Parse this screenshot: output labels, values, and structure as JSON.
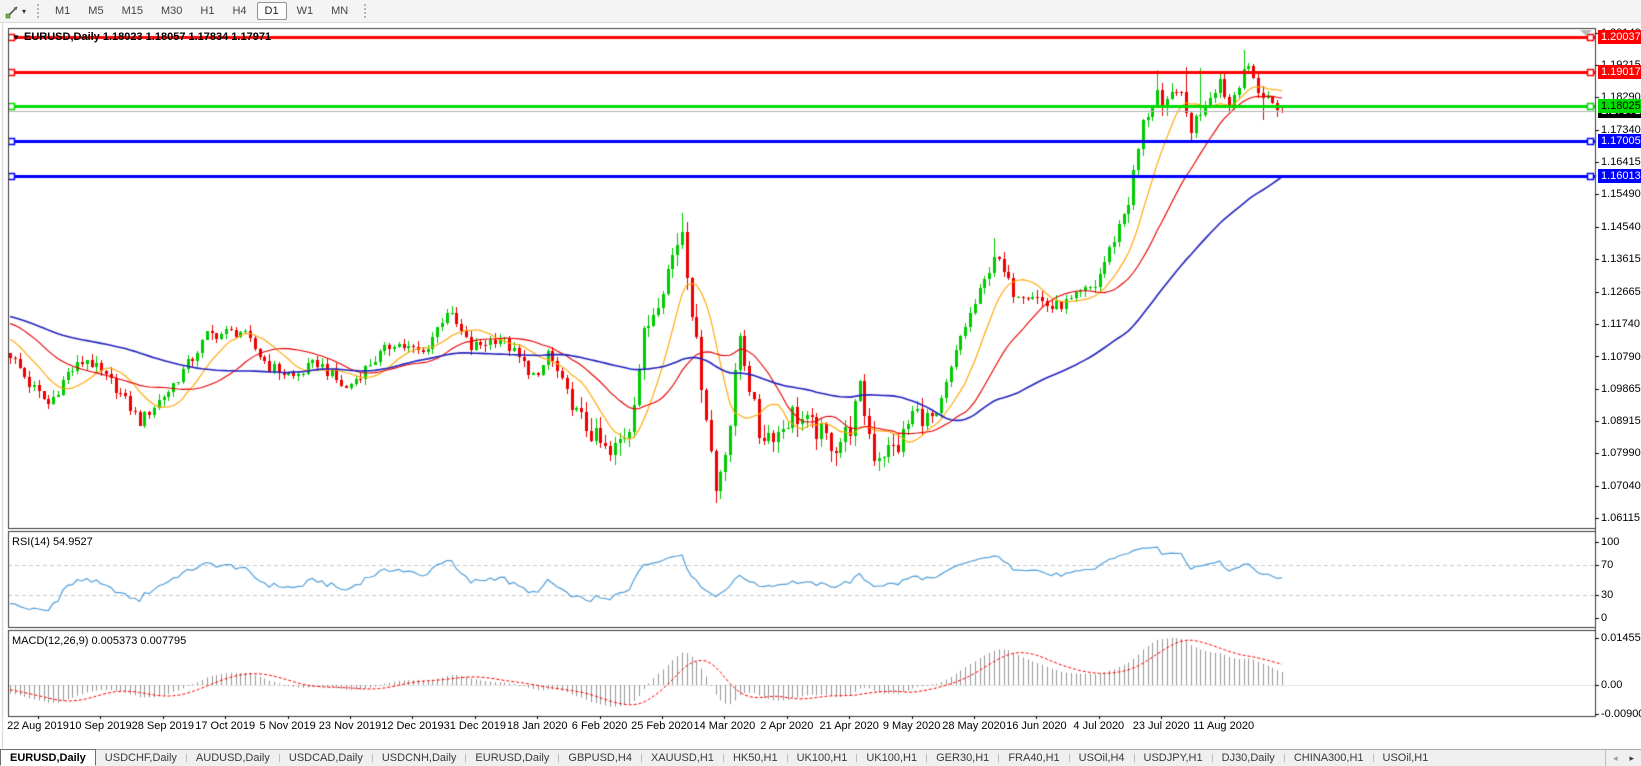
{
  "toolbar": {
    "tool_icon": "trendline-draw-icon",
    "dropdown_glyph": "▾",
    "timeframes": [
      {
        "label": "M1",
        "active": false
      },
      {
        "label": "M5",
        "active": false
      },
      {
        "label": "M15",
        "active": false
      },
      {
        "label": "M30",
        "active": false
      },
      {
        "label": "H1",
        "active": false
      },
      {
        "label": "H4",
        "active": false
      },
      {
        "label": "D1",
        "active": true
      },
      {
        "label": "W1",
        "active": false
      },
      {
        "label": "MN",
        "active": false
      }
    ]
  },
  "main_chart": {
    "title_arrow": "▼",
    "title": "EURUSD,Daily 1.18023 1.18057 1.17834 1.17971",
    "axis_ticks": [
      {
        "label": "1.20140",
        "price": 1.2014
      },
      {
        "label": "1.19215",
        "price": 1.19215
      },
      {
        "label": "1.18290",
        "price": 1.1829
      },
      {
        "label": "1.17340",
        "price": 1.1734
      },
      {
        "label": "1.16415",
        "price": 1.16415
      },
      {
        "label": "1.15490",
        "price": 1.1549
      },
      {
        "label": "1.14540",
        "price": 1.1454
      },
      {
        "label": "1.13615",
        "price": 1.13615
      },
      {
        "label": "1.12665",
        "price": 1.12665
      },
      {
        "label": "1.11740",
        "price": 1.1174
      },
      {
        "label": "1.10790",
        "price": 1.1079
      },
      {
        "label": "1.09865",
        "price": 1.09865
      },
      {
        "label": "1.08915",
        "price": 1.08915
      },
      {
        "label": "1.07990",
        "price": 1.0799
      },
      {
        "label": "1.07040",
        "price": 1.0704
      },
      {
        "label": "1.06115",
        "price": 1.06115
      }
    ],
    "hlines": [
      {
        "price": 1.20037,
        "label": "1.20037",
        "color": "#FF0000",
        "text_color": "#FFFFFF"
      },
      {
        "price": 1.19017,
        "label": "1.19017",
        "color": "#FF0000",
        "text_color": "#FFFFFF"
      },
      {
        "price": 1.18025,
        "label": "1.18025",
        "color": "#00DB00",
        "text_color": "#000000"
      },
      {
        "price": 1.17005,
        "label": "1.17005",
        "color": "#0000FF",
        "text_color": "#FFFFFF"
      },
      {
        "price": 1.16013,
        "label": "1.16013",
        "color": "#0000FF",
        "text_color": "#FFFFFF"
      }
    ],
    "current_price": {
      "price": 1.17971,
      "label": "1.17971",
      "line_color": "#b5b5b5",
      "box_color": "#000000",
      "text_color": "#FFFFFF"
    }
  },
  "rsi_panel": {
    "label": "RSI(14) 54.9527",
    "axis_labels": [
      {
        "label": "100",
        "value": 100
      },
      {
        "label": "70",
        "value": 70
      },
      {
        "label": "30",
        "value": 30
      },
      {
        "label": "0",
        "value": 0
      }
    ],
    "dashed_levels": [
      70,
      30
    ],
    "line_color": "#55a0da"
  },
  "macd_panel": {
    "label": "MACD(12,26,9) 0.005373 0.007795",
    "axis_labels": [
      {
        "label": "0.014556",
        "value": 0.014556
      },
      {
        "label": "0.00",
        "value": 0
      },
      {
        "label": "-0.009001",
        "value": -0.009001
      }
    ],
    "hist_color": "#979797",
    "signal_color": "#FF0000"
  },
  "time_axis": {
    "dates": [
      "22 Aug 2019",
      "10 Sep 2019",
      "28 Sep 2019",
      "17 Oct 2019",
      "5 Nov 2019",
      "23 Nov 2019",
      "12 Dec 2019",
      "31 Dec 2019",
      "18 Jan 2020",
      "6 Feb 2020",
      "25 Feb 2020",
      "14 Mar 2020",
      "2 Apr 2020",
      "21 Apr 2020",
      "9 May 2020",
      "28 May 2020",
      "16 Jun 2020",
      "4 Jul 2020",
      "23 Jul 2020",
      "11 Aug 2020"
    ]
  },
  "tabs": {
    "items": [
      {
        "label": "EURUSD,Daily",
        "active": true
      },
      {
        "label": "USDCHF,Daily",
        "active": false
      },
      {
        "label": "AUDUSD,Daily",
        "active": false
      },
      {
        "label": "USDCAD,Daily",
        "active": false
      },
      {
        "label": "USDCNH,Daily",
        "active": false
      },
      {
        "label": "EURUSD,Daily",
        "active": false
      },
      {
        "label": "GBPUSD,H4",
        "active": false
      },
      {
        "label": "XAUUSD,H1",
        "active": false
      },
      {
        "label": "HK50,H1",
        "active": false
      },
      {
        "label": "UK100,H1",
        "active": false
      },
      {
        "label": "UK100,H1",
        "active": false
      },
      {
        "label": "GER30,H1",
        "active": false
      },
      {
        "label": "FRA40,H1",
        "active": false
      },
      {
        "label": "USOil,H4",
        "active": false
      },
      {
        "label": "USDJPY,H1",
        "active": false
      },
      {
        "label": "DJ30,Daily",
        "active": false
      },
      {
        "label": "CHINA300,H1",
        "active": false
      },
      {
        "label": "USOil,H1",
        "active": false
      }
    ],
    "scroll_left": "◂",
    "scroll_right": "▸"
  },
  "chart_data": {
    "type": "candlestick",
    "symbol": "EURUSD",
    "timeframe": "Daily",
    "visible_candles": 266,
    "last_ohlc": {
      "open": 1.18023,
      "high": 1.18057,
      "low": 1.17834,
      "close": 1.17971
    },
    "candle_up_color": "#00CB00",
    "candle_down_color": "#EC0000",
    "close_anchors": [
      [
        -60,
        1.131
      ],
      [
        -45,
        1.1255
      ],
      [
        -30,
        1.114
      ],
      [
        -15,
        1.1235
      ],
      [
        -5,
        1.113
      ],
      [
        0,
        1.1085
      ],
      [
        4,
        1.1
      ],
      [
        8,
        1.094
      ],
      [
        12,
        1.103
      ],
      [
        16,
        1.1072
      ],
      [
        22,
        1.099
      ],
      [
        27,
        1.089
      ],
      [
        33,
        1.098
      ],
      [
        38,
        1.1075
      ],
      [
        41,
        1.114
      ],
      [
        48,
        1.1152
      ],
      [
        54,
        1.105
      ],
      [
        59,
        1.102
      ],
      [
        64,
        1.1062
      ],
      [
        70,
        1.0985
      ],
      [
        75,
        1.106
      ],
      [
        80,
        1.112
      ],
      [
        86,
        1.1087
      ],
      [
        91,
        1.1212
      ],
      [
        96,
        1.1103
      ],
      [
        102,
        1.1136
      ],
      [
        110,
        1.101
      ],
      [
        112,
        1.1093
      ],
      [
        118,
        1.091
      ],
      [
        125,
        1.0788
      ],
      [
        129,
        1.088
      ],
      [
        132,
        1.1135
      ],
      [
        136,
        1.129
      ],
      [
        140,
        1.145
      ],
      [
        143,
        1.1105
      ],
      [
        145,
        1.0915
      ],
      [
        147,
        1.069
      ],
      [
        150,
        1.0885
      ],
      [
        152,
        1.114
      ],
      [
        156,
        1.0855
      ],
      [
        160,
        1.086
      ],
      [
        163,
        1.0915
      ],
      [
        168,
        1.0865
      ],
      [
        172,
        1.082
      ],
      [
        175,
        1.0875
      ],
      [
        177,
        1.098
      ],
      [
        180,
        1.0795
      ],
      [
        185,
        1.0818
      ],
      [
        188,
        1.0915
      ],
      [
        193,
        1.09
      ],
      [
        198,
        1.1135
      ],
      [
        203,
        1.1295
      ],
      [
        205,
        1.1375
      ],
      [
        209,
        1.1265
      ],
      [
        213,
        1.126
      ],
      [
        217,
        1.1218
      ],
      [
        221,
        1.124
      ],
      [
        226,
        1.1285
      ],
      [
        229,
        1.1385
      ],
      [
        233,
        1.153
      ],
      [
        236,
        1.175
      ],
      [
        239,
        1.1845
      ],
      [
        240,
        1.1778
      ],
      [
        243,
        1.1862
      ],
      [
        246,
        1.174
      ],
      [
        249,
        1.1815
      ],
      [
        252,
        1.188
      ],
      [
        254,
        1.18
      ],
      [
        257,
        1.1915
      ],
      [
        259,
        1.188
      ],
      [
        261,
        1.183
      ],
      [
        263,
        1.1815
      ],
      [
        265,
        1.17971
      ]
    ],
    "wick_overrides": {
      "8": {
        "l": 1.0926
      },
      "27": {
        "l": 1.0879
      },
      "125": {
        "l": 1.0778
      },
      "140": {
        "h": 1.1495
      },
      "147": {
        "l": 1.0655
      },
      "205": {
        "h": 1.1422
      },
      "239": {
        "h": 1.1908
      },
      "245": {
        "h": 1.1915
      },
      "248": {
        "h": 1.1912
      },
      "257": {
        "h": 1.1964
      },
      "261": {
        "l": 1.1763
      },
      "265": {
        "o": 1.18023,
        "h": 1.18057,
        "l": 1.17834,
        "c": 1.17971
      }
    },
    "moving_averages": [
      {
        "name": "ma-fast",
        "period": 10,
        "color": "#FFA500"
      },
      {
        "name": "ma-mid",
        "period": 22,
        "color": "#E60000"
      },
      {
        "name": "ma-slow",
        "period": 55,
        "color": "#2323BE"
      }
    ],
    "indicators": {
      "rsi_period": 14,
      "rsi_current": 54.9527,
      "macd_params": [
        12,
        26,
        9
      ],
      "macd_current": 0.005373,
      "macd_signal_current": 0.007795
    }
  }
}
